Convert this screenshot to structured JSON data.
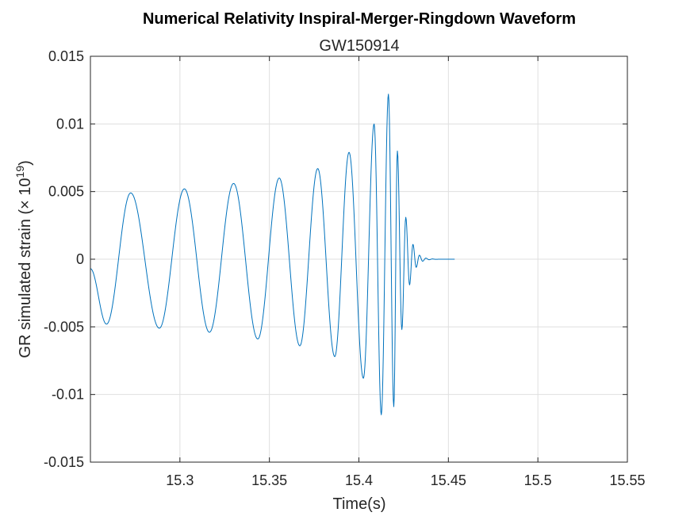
{
  "chart_data": {
    "type": "line",
    "title": "Numerical Relativity Inspiral-Merger-Ringdown Waveform",
    "subtitle": "GW150914",
    "xlabel": "Time(s)",
    "ylabel_prefix": "GR simulated strain (× 10",
    "ylabel_exponent": "19",
    "ylabel_suffix": ")",
    "xlim": [
      15.25,
      15.55
    ],
    "ylim": [
      -0.015,
      0.015
    ],
    "xticks": [
      15.3,
      15.35,
      15.4,
      15.45,
      15.5,
      15.55
    ],
    "xtick_labels": [
      "15.3",
      "15.35",
      "15.4",
      "15.45",
      "15.5",
      "15.55"
    ],
    "yticks": [
      -0.015,
      -0.01,
      -0.005,
      0,
      0.005,
      0.01,
      0.015
    ],
    "ytick_labels": [
      "-0.015",
      "-0.01",
      "-0.005",
      "0",
      "0.005",
      "0.01",
      "0.015"
    ],
    "grid": true,
    "line_color": "#0072bd",
    "series": [
      {
        "points": [
          [
            15.25,
            -0.0007
          ],
          [
            15.259,
            -0.0048
          ],
          [
            15.2725,
            0.0049
          ],
          [
            15.2885,
            -0.0051
          ],
          [
            15.3025,
            0.0052
          ],
          [
            15.3165,
            -0.0054
          ],
          [
            15.33,
            0.0056
          ],
          [
            15.3435,
            -0.0059
          ],
          [
            15.3555,
            0.006
          ],
          [
            15.367,
            -0.0064
          ],
          [
            15.377,
            0.0067
          ],
          [
            15.3865,
            -0.0072
          ],
          [
            15.3945,
            0.0079
          ],
          [
            15.4025,
            -0.0088
          ],
          [
            15.4085,
            0.01
          ],
          [
            15.4125,
            -0.0115
          ],
          [
            15.4165,
            0.0122
          ],
          [
            15.4195,
            -0.0109
          ],
          [
            15.4215,
            0.008
          ],
          [
            15.424,
            -0.0052
          ],
          [
            15.4262,
            0.0031
          ],
          [
            15.4283,
            -0.0019
          ],
          [
            15.4302,
            0.0011
          ],
          [
            15.432,
            -0.0006
          ],
          [
            15.4338,
            0.0003
          ],
          [
            15.4356,
            -0.00015
          ],
          [
            15.4374,
            8e-05
          ],
          [
            15.4392,
            -4e-05
          ],
          [
            15.441,
            2e-05
          ],
          [
            15.443,
            -1e-05
          ],
          [
            15.445,
            0.0
          ],
          [
            15.4535,
            0.0
          ]
        ]
      }
    ]
  }
}
